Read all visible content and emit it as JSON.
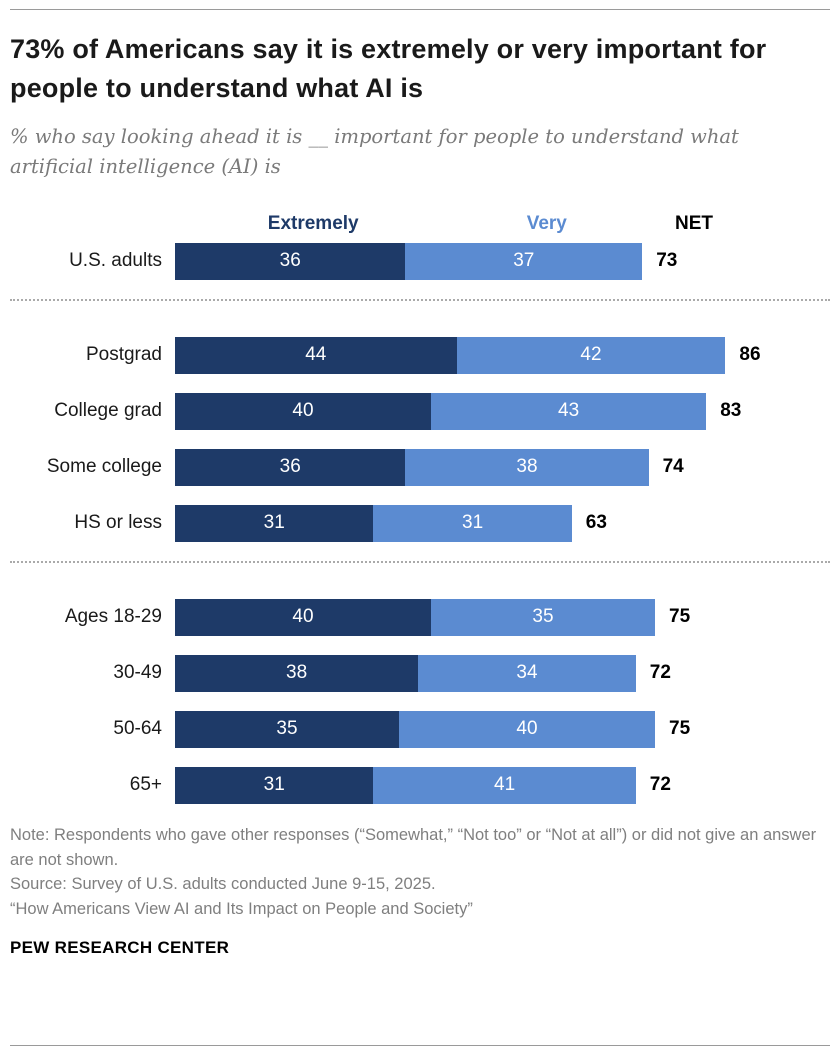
{
  "header": {
    "title": "73% of Americans say it is extremely or very important for people to understand what AI is",
    "subtitle": "% who say looking ahead it is __ important for people to understand what artificial intelligence (AI) is"
  },
  "legend": {
    "extremely": "Extremely",
    "very": "Very",
    "net": "NET"
  },
  "colors": {
    "extremely": "#1e3a68",
    "very": "#5b8bd1"
  },
  "chart_data": {
    "type": "bar",
    "stacked": true,
    "orientation": "horizontal",
    "xmax": 100,
    "series": [
      "Extremely",
      "Very"
    ],
    "groups": [
      {
        "rows": [
          {
            "label": "U.S. adults",
            "values": [
              36,
              37
            ],
            "net": 73
          }
        ]
      },
      {
        "rows": [
          {
            "label": "Postgrad",
            "values": [
              44,
              42
            ],
            "net": 86
          },
          {
            "label": "College grad",
            "values": [
              40,
              43
            ],
            "net": 83
          },
          {
            "label": "Some college",
            "values": [
              36,
              38
            ],
            "net": 74
          },
          {
            "label": "HS or less",
            "values": [
              31,
              31
            ],
            "net": 63
          }
        ]
      },
      {
        "rows": [
          {
            "label": "Ages 18-29",
            "values": [
              40,
              35
            ],
            "net": 75
          },
          {
            "label": "30-49",
            "values": [
              38,
              34
            ],
            "net": 72
          },
          {
            "label": "50-64",
            "values": [
              35,
              40
            ],
            "net": 75
          },
          {
            "label": "65+",
            "values": [
              31,
              41
            ],
            "net": 72
          }
        ]
      }
    ]
  },
  "notes": {
    "note": "Note: Respondents who gave other responses (“Somewhat,” “Not too” or “Not at all”) or did not give an answer are not shown.",
    "source": "Source: Survey of U.S. adults conducted June 9-15, 2025.",
    "report": "“How Americans View AI and Its Impact on People and Society”"
  },
  "footer": {
    "brand": "PEW RESEARCH CENTER"
  }
}
